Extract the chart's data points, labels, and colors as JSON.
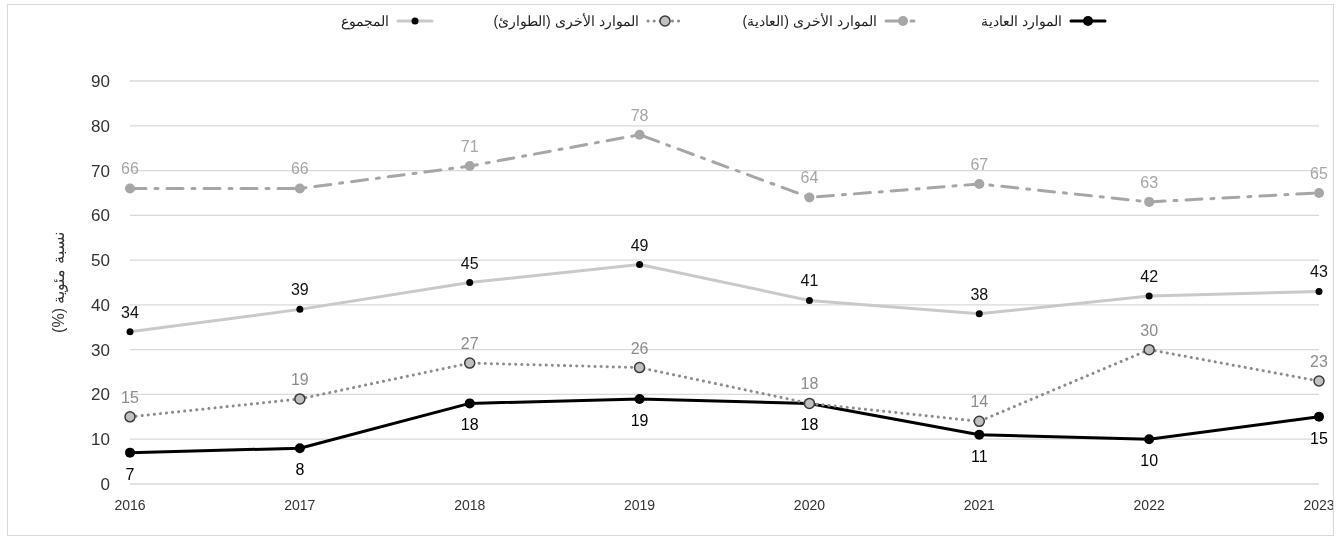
{
  "chart_data": {
    "type": "line",
    "ylabel": "نسبة مئوية (%)",
    "categories": [
      "2016",
      "2017",
      "2018",
      "2019",
      "2020",
      "2021",
      "2022",
      "2023"
    ],
    "series": [
      {
        "name": "الموارد العادية",
        "color": "#000000",
        "line_style": "solid",
        "values": [
          7,
          8,
          18,
          19,
          18,
          11,
          10,
          15
        ]
      },
      {
        "name": "الموارد الأخرى (العادية)",
        "color": "#a6a6a6",
        "line_style": "dashed",
        "values": [
          66,
          66,
          71,
          78,
          64,
          67,
          63,
          65
        ]
      },
      {
        "name": "الموارد الأخرى (الطوارئ)",
        "color": "#8c8c8c",
        "line_style": "dotted",
        "values": [
          15,
          19,
          27,
          26,
          18,
          14,
          30,
          23
        ]
      },
      {
        "name": "المجموع",
        "color": "#c9c9c9",
        "line_style": "solid",
        "values": [
          34,
          39,
          45,
          49,
          41,
          38,
          42,
          43
        ]
      }
    ],
    "ylim": [
      0,
      90
    ],
    "yticks": [
      0,
      10,
      20,
      30,
      40,
      50,
      60,
      70,
      80,
      90
    ],
    "grid": "y",
    "legend": "top",
    "marker": "circle",
    "data_labels": true
  }
}
